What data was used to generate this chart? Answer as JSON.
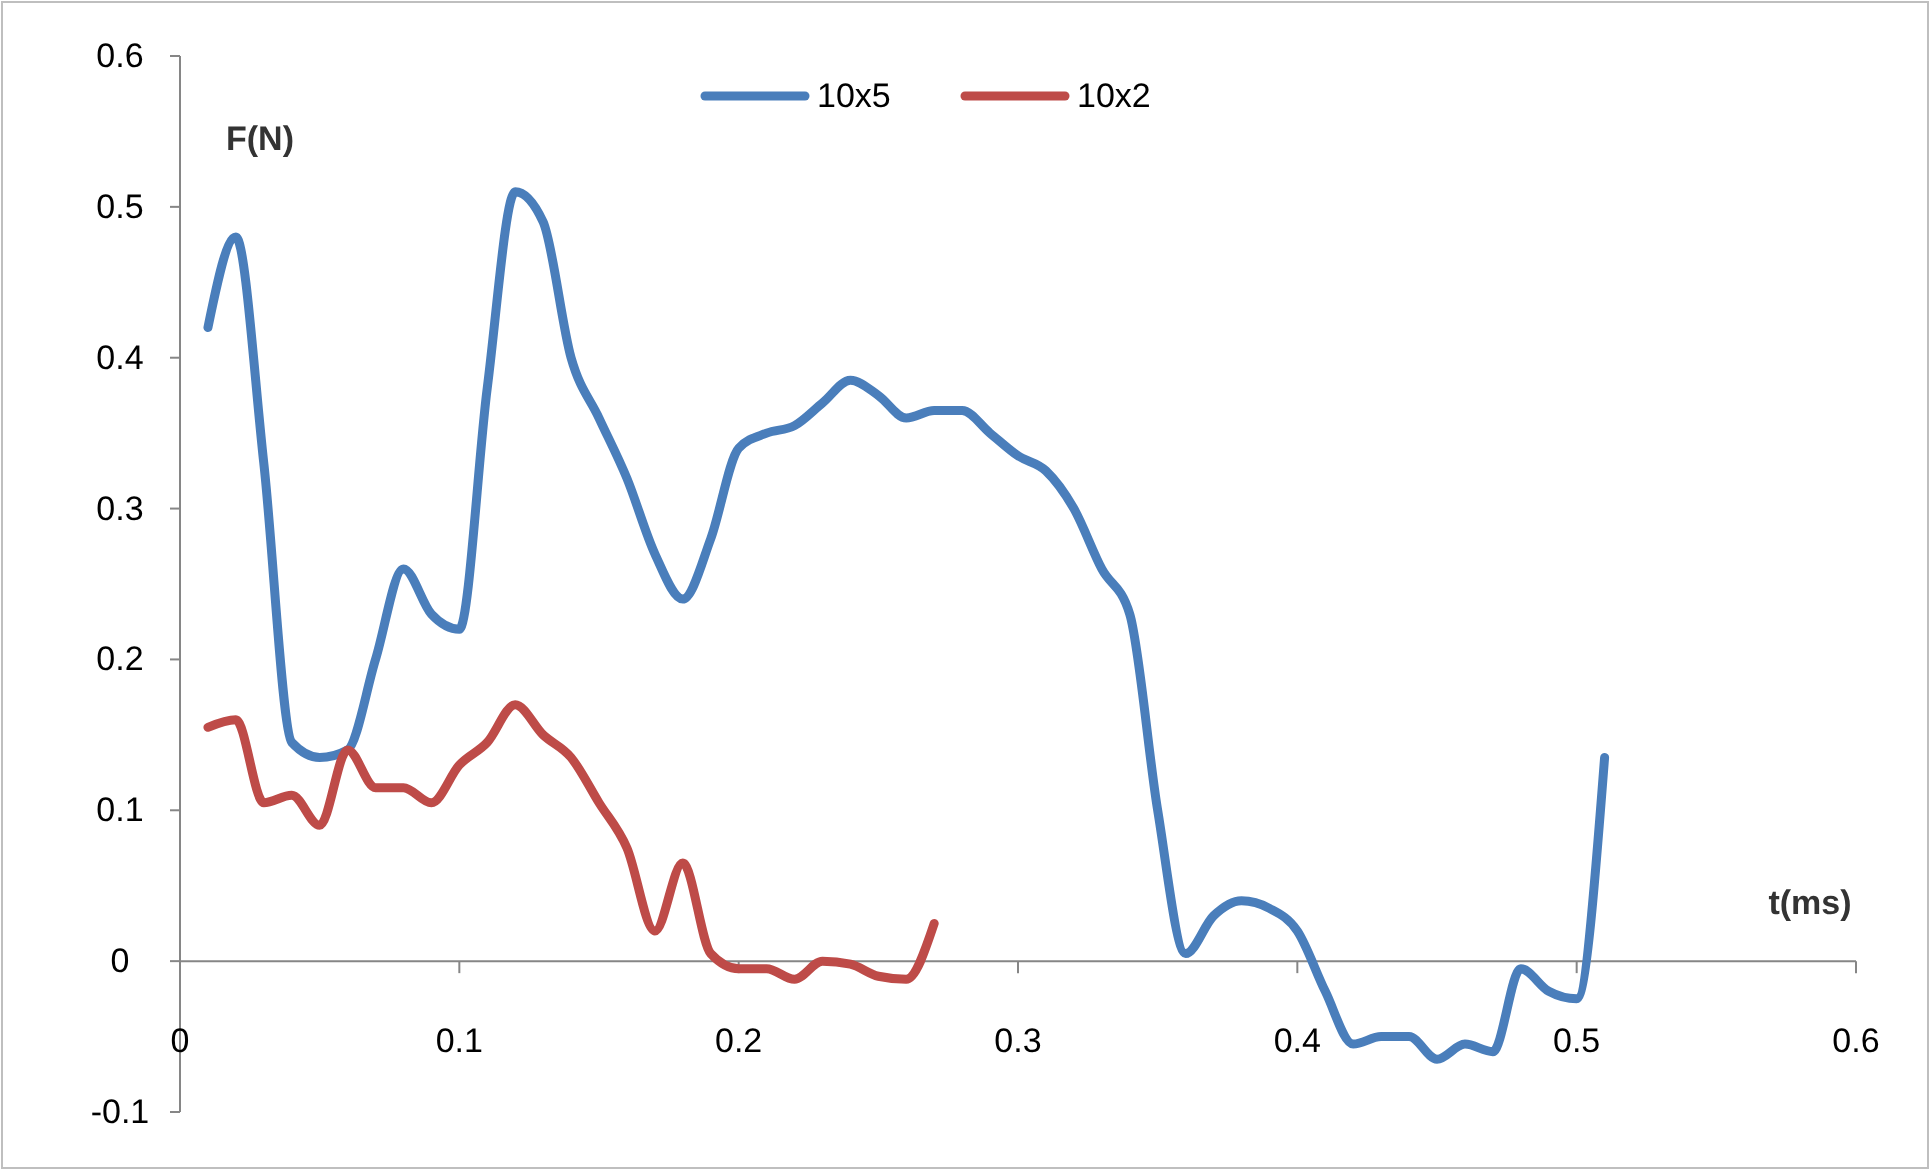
{
  "chart_data": {
    "type": "line",
    "xlabel": "t(ms)",
    "ylabel": "F(N)",
    "xlim": [
      0,
      0.6
    ],
    "xticks": [
      0,
      0.1,
      0.2,
      0.3,
      0.4,
      0.5,
      0.6
    ],
    "ylim": [
      -0.1,
      0.6
    ],
    "yticks": [
      -0.1,
      0,
      0.1,
      0.2,
      0.3,
      0.4,
      0.5,
      0.6
    ],
    "grid": false,
    "legend": "top",
    "marker": "none",
    "line_style": "solid",
    "series": [
      {
        "name": "10x5",
        "color": "#4a7ebb",
        "x": [
          0.01,
          0.02,
          0.03,
          0.04,
          0.05,
          0.06,
          0.07,
          0.08,
          0.09,
          0.1,
          0.11,
          0.12,
          0.13,
          0.14,
          0.15,
          0.16,
          0.17,
          0.18,
          0.19,
          0.2,
          0.21,
          0.22,
          0.23,
          0.24,
          0.25,
          0.26,
          0.27,
          0.28,
          0.29,
          0.3,
          0.31,
          0.32,
          0.33,
          0.34,
          0.35,
          0.36,
          0.37,
          0.38,
          0.39,
          0.4,
          0.41,
          0.42,
          0.43,
          0.44,
          0.45,
          0.46,
          0.47,
          0.48,
          0.49,
          0.5,
          0.51
        ],
        "values": [
          0.42,
          0.48,
          0.33,
          0.145,
          0.135,
          0.14,
          0.2,
          0.26,
          0.23,
          0.22,
          0.38,
          0.51,
          0.49,
          0.4,
          0.36,
          0.32,
          0.27,
          0.24,
          0.28,
          0.34,
          0.35,
          0.355,
          0.37,
          0.385,
          0.375,
          0.36,
          0.365,
          0.365,
          0.35,
          0.335,
          0.325,
          0.3,
          0.26,
          0.23,
          0.1,
          0.005,
          0.03,
          0.04,
          0.035,
          0.02,
          -0.02,
          -0.055,
          -0.05,
          -0.05,
          -0.065,
          -0.055,
          -0.06,
          -0.005,
          -0.02,
          -0.025,
          0.135
        ]
      },
      {
        "name": "10x2",
        "color": "#be4b48",
        "x": [
          0.01,
          0.02,
          0.03,
          0.04,
          0.05,
          0.06,
          0.07,
          0.08,
          0.09,
          0.1,
          0.11,
          0.12,
          0.13,
          0.14,
          0.15,
          0.16,
          0.17,
          0.18,
          0.19,
          0.2,
          0.21,
          0.22,
          0.23,
          0.24,
          0.25,
          0.26,
          0.27
        ],
        "values": [
          0.155,
          0.16,
          0.105,
          0.11,
          0.09,
          0.14,
          0.115,
          0.115,
          0.105,
          0.13,
          0.145,
          0.17,
          0.15,
          0.135,
          0.105,
          0.075,
          0.02,
          0.065,
          0.005,
          -0.005,
          -0.005,
          -0.012,
          0,
          -0.002,
          -0.01,
          -0.012,
          0.025
        ]
      }
    ]
  }
}
